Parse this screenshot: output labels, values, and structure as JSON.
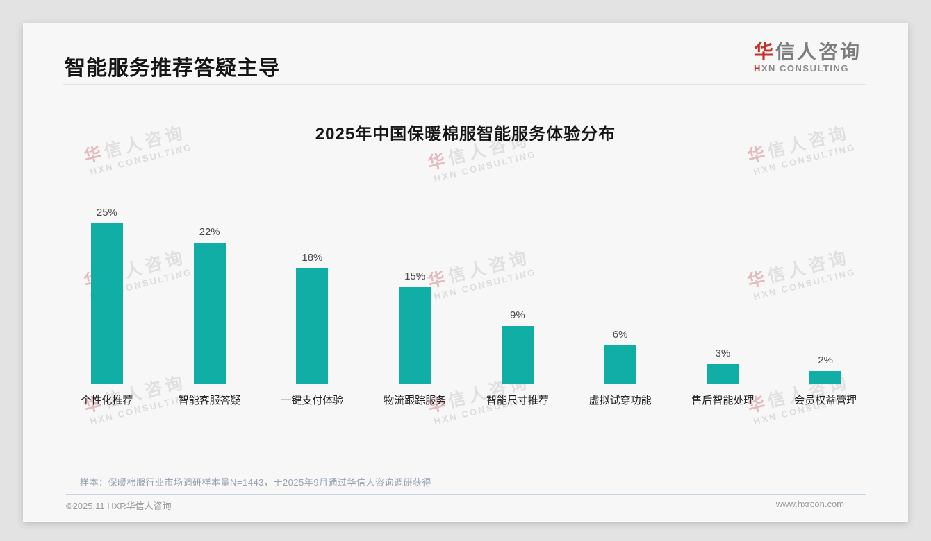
{
  "page": {
    "header": {
      "title": "智能服务推荐答疑主导"
    },
    "logo": {
      "cn_first": "华",
      "cn_rest": "信人咨询",
      "en_first": "H",
      "en_rest": "XN CONSULTING"
    },
    "watermark": {
      "line1_first": "华",
      "line1_rest": "信人咨询",
      "line2": "HXN CONSULTING"
    },
    "note": "样本：保暖棉服行业市场调研样本量N=1443，于2025年9月通过华信人咨询调研获得",
    "footer": {
      "left": "©2025.11 HXR华信人咨询",
      "right": "www.hxrcon.com"
    }
  },
  "chart_data": {
    "type": "bar",
    "title": "2025年中国保暖棉服智能服务体验分布",
    "categories": [
      "个性化推荐",
      "智能客服答疑",
      "一键支付体验",
      "物流跟踪服务",
      "智能尺寸推荐",
      "虚拟试穿功能",
      "售后智能处理",
      "会员权益管理"
    ],
    "values": [
      25,
      22,
      18,
      15,
      9,
      6,
      3,
      2
    ],
    "value_labels": [
      "25%",
      "22%",
      "18%",
      "15%",
      "9%",
      "6%",
      "3%",
      "2%"
    ],
    "unit": "%",
    "ylim": [
      0,
      27
    ],
    "bar_color": "#10aea5",
    "grid": false,
    "legend": false,
    "xlabel": "",
    "ylabel": ""
  }
}
